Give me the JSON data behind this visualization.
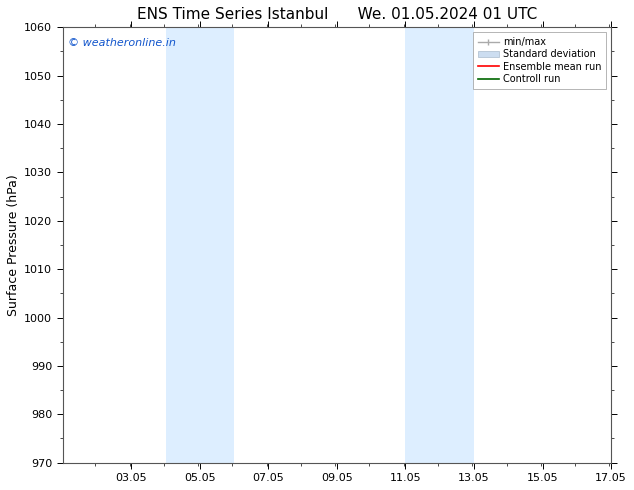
{
  "title_left": "ENS Time Series Istanbul",
  "title_right": "We. 01.05.2024 01 UTC",
  "ylabel": "Surface Pressure (hPa)",
  "xlim": [
    1.05,
    17.05
  ],
  "ylim": [
    970,
    1060
  ],
  "yticks": [
    970,
    980,
    990,
    1000,
    1010,
    1020,
    1030,
    1040,
    1050,
    1060
  ],
  "xtick_labels": [
    "03.05",
    "05.05",
    "07.05",
    "09.05",
    "11.05",
    "13.05",
    "15.05",
    "17.05"
  ],
  "xtick_positions": [
    3.05,
    5.05,
    7.05,
    9.05,
    11.05,
    13.05,
    15.05,
    17.05
  ],
  "shaded_bands": [
    {
      "x_start": 4.05,
      "x_end": 6.05
    },
    {
      "x_start": 11.05,
      "x_end": 13.05
    }
  ],
  "shaded_color": "#ddeeff",
  "watermark_text": "© weatheronline.in",
  "watermark_color": "#1155cc",
  "background_color": "#ffffff",
  "legend_labels": [
    "min/max",
    "Standard deviation",
    "Ensemble mean run",
    "Controll run"
  ],
  "legend_colors": [
    "#aaaaaa",
    "#ccddf0",
    "#ff0000",
    "#006600"
  ],
  "title_fontsize": 11,
  "ylabel_fontsize": 9,
  "tick_fontsize": 8,
  "watermark_fontsize": 8,
  "spine_color": "#555555"
}
